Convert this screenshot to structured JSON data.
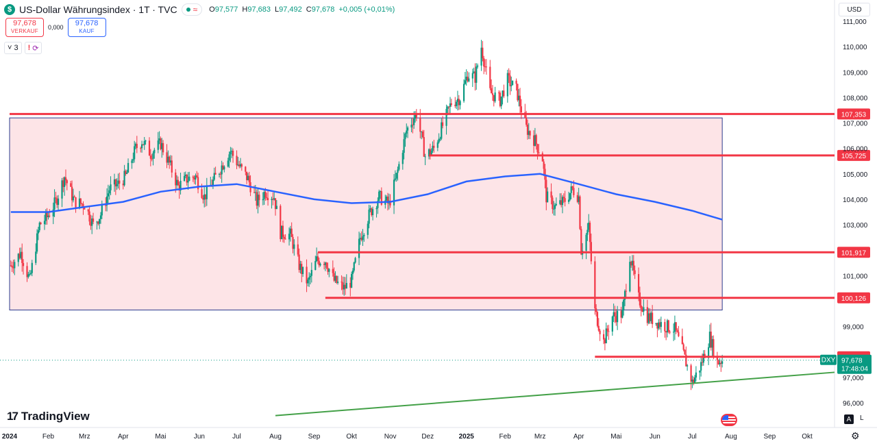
{
  "header": {
    "logo_glyph": "$",
    "title": "US-Dollar Währungsindex · 1T · TVC",
    "status_approx": "≈",
    "ohlc": {
      "o_label": "O",
      "o": "97,577",
      "h_label": "H",
      "h": "97,683",
      "l_label": "L",
      "l": "97,492",
      "c_label": "C",
      "c": "97,678",
      "change": "+0,005 (+0,01%)"
    }
  },
  "trade": {
    "sell_price": "97,678",
    "sell_label": "VERKAUF",
    "spread": "0,000",
    "buy_price": "97,678",
    "buy_label": "KAUF"
  },
  "indicators": {
    "count_label": "3",
    "alert_glyph": "!",
    "sync_glyph": "⟳",
    "chevron": "˅"
  },
  "currency": "USD",
  "branding": {
    "mark": "17",
    "name": "TradingView"
  },
  "scale_buttons": {
    "auto": "A",
    "log": "L"
  },
  "colors": {
    "up": "#089981",
    "down": "#f23645",
    "ma": "#2962ff",
    "box_fill": "#fde4e7",
    "box_stroke": "#2a3a8c",
    "support": "#f23645",
    "trendline": "#43a047"
  },
  "chart_data": {
    "type": "candlestick",
    "y_range": [
      95.5,
      111.5
    ],
    "y_ticks": [
      "111,000",
      "110,000",
      "109,000",
      "108,000",
      "107,000",
      "106,000",
      "105,000",
      "104,000",
      "103,000",
      "102,000",
      "101,000",
      "100,000",
      "99,000",
      "98,000",
      "97,000",
      "96,000"
    ],
    "x_labels": [
      "2024",
      "Feb",
      "Mrz",
      "Apr",
      "Mai",
      "Jun",
      "Jul",
      "Aug",
      "Sep",
      "Okt",
      "Nov",
      "Dez",
      "2025",
      "Feb",
      "Mrz",
      "Apr",
      "Mai",
      "Jun",
      "Jul",
      "Aug",
      "Sep",
      "Okt"
    ],
    "x_label_bold": [
      "2024",
      "2025"
    ],
    "close_path": [
      [
        "2024-01-02",
        101.4
      ],
      [
        "2024-01-10",
        101.9
      ],
      [
        "2024-01-17",
        100.8
      ],
      [
        "2024-01-25",
        103.0
      ],
      [
        "2024-01-31",
        103.3
      ],
      [
        "2024-02-07",
        103.9
      ],
      [
        "2024-02-14",
        104.9
      ],
      [
        "2024-02-22",
        103.9
      ],
      [
        "2024-03-01",
        103.8
      ],
      [
        "2024-03-08",
        103.0
      ],
      [
        "2024-03-14",
        103.4
      ],
      [
        "2024-03-21",
        104.4
      ],
      [
        "2024-03-28",
        104.6
      ],
      [
        "2024-04-03",
        104.9
      ],
      [
        "2024-04-11",
        106.0
      ],
      [
        "2024-04-16",
        106.3
      ],
      [
        "2024-04-23",
        105.8
      ],
      [
        "2024-05-01",
        106.2
      ],
      [
        "2024-05-08",
        105.4
      ],
      [
        "2024-05-15",
        104.5
      ],
      [
        "2024-05-22",
        104.8
      ],
      [
        "2024-05-29",
        104.9
      ],
      [
        "2024-06-05",
        104.1
      ],
      [
        "2024-06-12",
        104.7
      ],
      [
        "2024-06-20",
        105.4
      ],
      [
        "2024-06-26",
        105.9
      ],
      [
        "2024-07-03",
        105.3
      ],
      [
        "2024-07-10",
        104.8
      ],
      [
        "2024-07-17",
        103.9
      ],
      [
        "2024-07-24",
        104.3
      ],
      [
        "2024-07-31",
        104.1
      ],
      [
        "2024-08-05",
        102.7
      ],
      [
        "2024-08-13",
        102.6
      ],
      [
        "2024-08-20",
        101.4
      ],
      [
        "2024-08-27",
        100.7
      ],
      [
        "2024-09-03",
        101.6
      ],
      [
        "2024-09-10",
        101.6
      ],
      [
        "2024-09-17",
        100.8
      ],
      [
        "2024-09-25",
        100.5
      ],
      [
        "2024-10-01",
        100.8
      ],
      [
        "2024-10-08",
        102.5
      ],
      [
        "2024-10-16",
        103.5
      ],
      [
        "2024-10-23",
        104.1
      ],
      [
        "2024-10-31",
        103.8
      ],
      [
        "2024-11-06",
        104.9
      ],
      [
        "2024-11-14",
        106.7
      ],
      [
        "2024-11-22",
        107.4
      ],
      [
        "2024-11-29",
        105.7
      ],
      [
        "2024-12-06",
        106.0
      ],
      [
        "2024-12-13",
        106.9
      ],
      [
        "2024-12-20",
        107.8
      ],
      [
        "2024-12-27",
        108.0
      ],
      [
        "2025-01-02",
        108.9
      ],
      [
        "2025-01-08",
        108.8
      ],
      [
        "2025-01-13",
        110.0
      ],
      [
        "2025-01-20",
        108.2
      ],
      [
        "2025-01-28",
        107.9
      ],
      [
        "2025-02-03",
        108.7
      ],
      [
        "2025-02-10",
        108.3
      ],
      [
        "2025-02-18",
        106.8
      ],
      [
        "2025-02-25",
        106.3
      ],
      [
        "2025-03-03",
        105.6
      ],
      [
        "2025-03-06",
        104.1
      ],
      [
        "2025-03-13",
        103.7
      ],
      [
        "2025-03-20",
        103.9
      ],
      [
        "2025-03-27",
        104.4
      ],
      [
        "2025-04-01",
        104.1
      ],
      [
        "2025-04-03",
        102.0
      ],
      [
        "2025-04-09",
        102.9
      ],
      [
        "2025-04-14",
        99.6
      ],
      [
        "2025-04-21",
        98.4
      ],
      [
        "2025-04-28",
        99.4
      ],
      [
        "2025-05-06",
        99.5
      ],
      [
        "2025-05-12",
        101.8
      ],
      [
        "2025-05-19",
        100.1
      ],
      [
        "2025-05-26",
        99.4
      ],
      [
        "2025-06-02",
        99.2
      ],
      [
        "2025-06-10",
        99.0
      ],
      [
        "2025-06-17",
        98.9
      ],
      [
        "2025-06-24",
        97.9
      ],
      [
        "2025-07-01",
        96.8
      ],
      [
        "2025-07-08",
        97.5
      ],
      [
        "2025-07-15",
        98.6
      ],
      [
        "2025-07-21",
        97.6
      ],
      [
        "2025-07-25",
        97.68
      ]
    ],
    "moving_average": [
      [
        "2024-01-02",
        103.5
      ],
      [
        "2024-02-01",
        103.5
      ],
      [
        "2024-03-01",
        103.7
      ],
      [
        "2024-04-01",
        103.9
      ],
      [
        "2024-05-01",
        104.3
      ],
      [
        "2024-06-01",
        104.5
      ],
      [
        "2024-07-01",
        104.6
      ],
      [
        "2024-08-01",
        104.3
      ],
      [
        "2024-09-01",
        104.0
      ],
      [
        "2024-10-01",
        103.85
      ],
      [
        "2024-11-01",
        103.9
      ],
      [
        "2024-12-01",
        104.2
      ],
      [
        "2025-01-01",
        104.7
      ],
      [
        "2025-02-01",
        104.9
      ],
      [
        "2025-03-01",
        105.0
      ],
      [
        "2025-04-01",
        104.6
      ],
      [
        "2025-05-01",
        104.2
      ],
      [
        "2025-06-01",
        103.9
      ],
      [
        "2025-07-01",
        103.55
      ],
      [
        "2025-07-25",
        103.2
      ]
    ],
    "range_box": {
      "x_start": "2024-01-01",
      "x_end": "2025-07-25",
      "y_top": 107.2,
      "y_bottom": 99.65
    },
    "levels": [
      {
        "value": 107.353,
        "label": "107,353",
        "x_start": "2024-01-01",
        "x_end": "2025-10-31"
      },
      {
        "value": 105.725,
        "label": "105,725",
        "x_start": "2024-12-02",
        "x_end": "2025-10-31"
      },
      {
        "value": 101.917,
        "label": "101,917",
        "x_start": "2024-09-04",
        "x_end": "2025-10-31"
      },
      {
        "value": 100.126,
        "label": "100,126",
        "x_start": "2024-09-10",
        "x_end": "2025-10-31"
      },
      {
        "value": 97.811,
        "label": "97,811",
        "x_start": "2025-04-14",
        "x_end": "2025-10-31"
      }
    ],
    "trendline": {
      "x1": "2024-08-01",
      "y1": 95.5,
      "x2": "2025-10-31",
      "y2": 97.2
    },
    "last_price": {
      "value": 97.678,
      "symbol": "DXY",
      "label": "97,678",
      "countdown": "17:48:04"
    }
  }
}
